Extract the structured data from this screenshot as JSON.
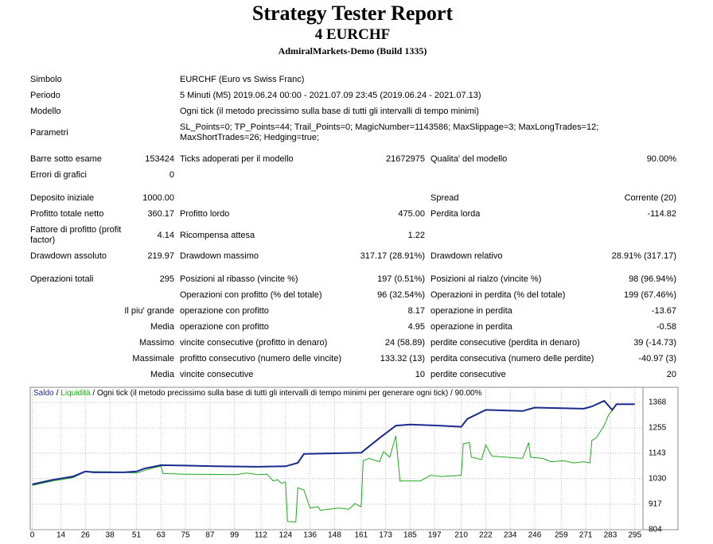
{
  "header": {
    "title": "Strategy Tester Report",
    "subtitle": "4 EURCHF",
    "server": "AdmiralMarkets-Demo (Build 1335)"
  },
  "table": {
    "rows": [
      [
        "Simbolo",
        null,
        "EURCHF (Euro vs Swiss Franc)",
        null,
        null,
        null
      ],
      [
        "Periodo",
        null,
        "5 Minuti (M5) 2019.06.24 00:00 - 2021.07.09 23:45 (2019.06.24 - 2021.07.13)",
        null,
        null,
        null
      ],
      [
        "Modello",
        null,
        "Ogni tick (il metodo precissimo sulla base di tutti gli intervalli di tempo minimi)",
        null,
        null,
        null
      ],
      [
        "Parametri",
        null,
        "SL_Points=0; TP_Points=44; Trail_Points=0; MagicNumber=1143586; MaxSlippage=3; MaxLongTrades=12; MaxShortTrades=26; Hedging=true;",
        null,
        null,
        null
      ],
      [
        "Barre sotto esame",
        "153424",
        "Ticks adoperati per il modello",
        "21672975",
        "Qualita' del modello",
        "90.00%"
      ],
      [
        "Errori di grafici",
        "0",
        null,
        null,
        null,
        null
      ],
      [
        "Deposito iniziale",
        "1000.00",
        null,
        null,
        "Spread",
        "Corrente (20)"
      ],
      [
        "Profitto totale netto",
        "360.17",
        "Profitto lordo",
        "475.00",
        "Perdita lorda",
        "-114.82"
      ],
      [
        "Fattore di profitto (profit factor)",
        "4.14",
        "Ricompensa attesa",
        "1.22",
        null,
        null
      ],
      [
        "Drawdown assoluto",
        "219.97",
        "Drawdown massimo",
        "317.17 (28.91%)",
        "Drawdown relativo",
        "28.91% (317.17)"
      ],
      [
        "Operazioni totali",
        "295",
        "Posizioni al ribasso (vincite %)",
        "197 (0.51%)",
        "Posizioni al rialzo (vincite %)",
        "98 (96.94%)"
      ],
      [
        null,
        null,
        "Operazioni con profitto (% del totale)",
        "96 (32.54%)",
        "Operazioni in perdita (% del totale)",
        "199 (67.46%)"
      ],
      [
        null,
        "Il piu' grande",
        "operazione con profitto",
        "8.17",
        "operazione in perdita",
        "-13.67"
      ],
      [
        null,
        "Media",
        "operazione con profitto",
        "4.95",
        "operazione in perdita",
        "-0.58"
      ],
      [
        null,
        "Massimo",
        "vincite consecutive (profitto in denaro)",
        "24 (58.89)",
        "perdite consecutive (perdita in denaro)",
        "39 (-14.73)"
      ],
      [
        null,
        "Massimale",
        "profitto consecutivo (numero delle vincite)",
        "133.32 (13)",
        "perdita consecutiva (numero delle perdite)",
        "-40.97 (3)"
      ],
      [
        null,
        "Media",
        "vincite consecutive",
        "10",
        "perdite consecutive",
        "20"
      ]
    ]
  },
  "chart_data": {
    "type": "line",
    "legend_separator": "/",
    "subtitle": " / Ogni tick (il metodo precissimo sulla base di tutti gli intervalli di tempo minimi per generare ogni tick) / 90.00%",
    "xlim": [
      -1,
      299
    ],
    "ylim": [
      804,
      1435
    ],
    "xticks": [
      0,
      14,
      26,
      38,
      51,
      63,
      75,
      87,
      99,
      112,
      124,
      136,
      148,
      161,
      173,
      185,
      197,
      210,
      222,
      234,
      246,
      259,
      271,
      283,
      295
    ],
    "yticks": [
      804,
      917,
      1030,
      1143,
      1255,
      1368
    ],
    "grid": true,
    "series": [
      {
        "name": "Saldo",
        "color": "#1a2a8c",
        "x": [
          0,
          5,
          10,
          20,
          26,
          30,
          45,
          51,
          55,
          63,
          75,
          90,
          110,
          124,
          130,
          133,
          161,
          170,
          178,
          185,
          200,
          210,
          213,
          222,
          240,
          246,
          270,
          274,
          280,
          284,
          286,
          295
        ],
        "values": [
          1005,
          1015,
          1025,
          1040,
          1062,
          1058,
          1058,
          1062,
          1075,
          1090,
          1088,
          1085,
          1083,
          1085,
          1100,
          1140,
          1145,
          1210,
          1265,
          1270,
          1265,
          1260,
          1295,
          1335,
          1330,
          1345,
          1340,
          1350,
          1375,
          1335,
          1360,
          1360
        ]
      },
      {
        "name": "Liquidità",
        "color": "#1fa81f",
        "x": [
          0,
          10,
          20,
          26,
          40,
          51,
          60,
          63,
          64,
          75,
          100,
          105,
          110,
          115,
          118,
          120,
          122,
          124,
          125,
          129,
          130,
          133,
          136,
          140,
          141,
          150,
          155,
          158,
          161,
          162,
          165,
          170,
          172,
          175,
          178,
          180,
          190,
          195,
          200,
          210,
          211,
          214,
          215,
          220,
          222,
          225,
          240,
          243,
          244,
          250,
          254,
          260,
          265,
          270,
          273,
          274,
          276,
          280,
          282,
          286,
          295
        ],
        "values": [
          1000,
          1020,
          1035,
          1062,
          1060,
          1055,
          1080,
          1085,
          1053,
          1050,
          1048,
          1055,
          1048,
          1050,
          1020,
          1025,
          1010,
          1015,
          840,
          838,
          990,
          980,
          900,
          905,
          890,
          900,
          895,
          920,
          905,
          1110,
          1120,
          1105,
          1150,
          1125,
          1220,
          1020,
          1020,
          1045,
          1040,
          1045,
          1185,
          1190,
          1125,
          1115,
          1180,
          1130,
          1120,
          1190,
          1125,
          1120,
          1105,
          1110,
          1100,
          1105,
          1100,
          1200,
          1210,
          1265,
          1310,
          1360,
          1360
        ]
      }
    ]
  }
}
